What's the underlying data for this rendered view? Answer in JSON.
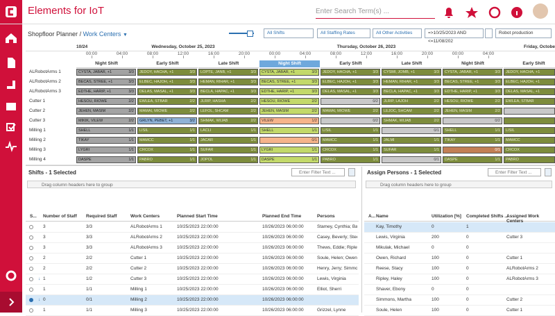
{
  "header": {
    "title": "Elements for IoT",
    "search_placeholder": "Enter Search Term(s) ..."
  },
  "breadcrumb": {
    "root": "Shopfloor Planner",
    "current": "Work Centers"
  },
  "filters": {
    "shifts": "All Shifts",
    "staffing": "All Staffing Rates",
    "activities": "All Other Activities",
    "date": "=>10/25/2023 AND <=11/08/202",
    "project": "Robot production"
  },
  "gantt": {
    "start_label": "10/24",
    "days": [
      "Wednesday, October 25, 2023",
      "Thursday, October 26, 2023",
      "Friday, October"
    ],
    "time_labels": [
      "00:00",
      "04:00",
      "08:00",
      "12:00",
      "16:00",
      "20:00",
      "00:00",
      "04:00",
      "08:00",
      "12:00",
      "16:00",
      "20:00",
      "00:00",
      "04:00"
    ],
    "shifts": [
      "Night Shift",
      "Early Shift",
      "Late Shift",
      "Night Shift",
      "Early Shift",
      "Late Shift",
      "Night Shift",
      "Early Shift"
    ],
    "resources": [
      {
        "name": "ALRobotArms 1",
        "cells": [
          {
            "t": "CYSTA, JABAR, +1",
            "c": "3/3",
            "s": "past"
          },
          {
            "t": "JEDOY, HACHA, +1",
            "c": "3/3",
            "s": "ok"
          },
          {
            "t": "LOPTE, JANB, +1",
            "c": "3/3",
            "s": "ok"
          },
          {
            "t": "CYSTA, JABAR, +1",
            "c": "3/3",
            "s": "current"
          },
          {
            "t": "JEDOY, HACHA, +1",
            "c": "3/3",
            "s": "ok"
          },
          {
            "t": "CYSMI, JOMB, +1",
            "c": "3/3",
            "s": "ok"
          },
          {
            "t": "CYSTA, JABAR, +1",
            "c": "3/3",
            "s": "ok"
          },
          {
            "t": "JEDOY, HACHA, +1",
            "s": "ok"
          }
        ]
      },
      {
        "name": "ALRobotArms 2",
        "cells": [
          {
            "t": "BECAS, STREE, +1",
            "c": "3/3",
            "s": "past"
          },
          {
            "t": "ELBEC, HAJOH, +1",
            "c": "3/3",
            "s": "ok"
          },
          {
            "t": "HEMAN, RIHAR, +1",
            "c": "3/3",
            "s": "ok"
          },
          {
            "t": "BECAS, STREE, +1",
            "c": "3/3",
            "s": "current"
          },
          {
            "t": "ELBEC, HAJOH, +1",
            "c": "3/3",
            "s": "ok"
          },
          {
            "t": "HEMAN, RIHAR, +1",
            "c": "3/3",
            "s": "ok"
          },
          {
            "t": "BECAS, STREE, +1",
            "c": "3/3",
            "s": "ok"
          },
          {
            "t": "ELBEC, HAJOH, +1",
            "s": "ok"
          }
        ]
      },
      {
        "name": "ALRobotArms 3",
        "cells": [
          {
            "t": "EDTHE, HARIP, +1",
            "c": "3/3",
            "s": "past"
          },
          {
            "t": "DELAS, MASAL, +1",
            "c": "3/3",
            "s": "ok"
          },
          {
            "t": "BECLA, HAPAC, +1",
            "c": "3/3",
            "s": "ok"
          },
          {
            "t": "EDTHE, HARIP, +1",
            "c": "3/3",
            "s": "current"
          },
          {
            "t": "DELAS, MASAL, +1",
            "c": "3/3",
            "s": "ok"
          },
          {
            "t": "BECLA, HAPAC, +1",
            "c": "3/3",
            "s": "ok"
          },
          {
            "t": "EDTHE, HARIP, +1",
            "c": "3/3",
            "s": "ok"
          },
          {
            "t": "DELAS, MASAL, +1",
            "s": "ok"
          }
        ]
      },
      {
        "name": "Cutter 1",
        "cells": [
          {
            "t": "HESOU, RIOWE",
            "c": "2/2",
            "s": "past"
          },
          {
            "t": "EWLEA, STBAR",
            "c": "2/2",
            "s": "ok"
          },
          {
            "t": "JLRIP, HASHA",
            "c": "2/2",
            "s": "ok"
          },
          {
            "t": "HESOU, RIOWE",
            "c": "2/2",
            "s": "current"
          },
          {
            "t": null,
            "c": "0/2",
            "s": "empty"
          },
          {
            "t": "JLRIP, LAJOH",
            "c": "2/2",
            "s": "ok"
          },
          {
            "t": "HESOU, RIOWE",
            "c": "2/2",
            "s": "ok"
          },
          {
            "t": "EWLEA, STBAR",
            "s": "ok"
          }
        ]
      },
      {
        "name": "Cutter 2",
        "cells": [
          {
            "t": "JEHEN, MASIM",
            "c": "2/2",
            "s": "past"
          },
          {
            "t": "MAMAI, MIOWE",
            "c": "2/2",
            "s": "ok"
          },
          {
            "t": "LEFOL, SHCAM",
            "c": "2/2",
            "s": "ok"
          },
          {
            "t": "JEHEN, MASIM",
            "c": "2/2",
            "s": "current"
          },
          {
            "t": "MAMAI, MIOWE",
            "c": "2/2",
            "s": "ok"
          },
          {
            "t": "LEJOC, SHCAM",
            "c": "2/2",
            "s": "ok"
          },
          {
            "t": "JEHEN, MASIM",
            "c": "2/2",
            "s": "ok"
          },
          {
            "t": null,
            "s": "empty"
          }
        ]
      },
      {
        "name": "Cutter 3",
        "cells": [
          {
            "t": "MIKIK, VILEW",
            "c": "2/2",
            "s": "past"
          },
          {
            "t": "GRLYN, PEBET, +1",
            "c": "3/2",
            "s": "over"
          },
          {
            "t": "SHMAK, WIJAB",
            "c": "2/2",
            "s": "ok"
          },
          {
            "t": "VILEW",
            "c": "1/2",
            "s": "under"
          },
          {
            "t": null,
            "c": "0/2",
            "s": "empty"
          },
          {
            "t": "SHMAK, WIJAB",
            "c": "2/2",
            "s": "ok"
          },
          {
            "t": null,
            "c": "0/2",
            "s": "empty"
          },
          {
            "t": null,
            "s": "ok"
          }
        ]
      },
      {
        "name": "Milling 1",
        "cells": [
          {
            "t": "SHELL",
            "c": "1/1",
            "s": "past"
          },
          {
            "t": "LISIL",
            "c": "1/1",
            "s": "ok"
          },
          {
            "t": "LACLI",
            "c": "1/1",
            "s": "ok"
          },
          {
            "t": "SHELL",
            "c": "1/1",
            "s": "current"
          },
          {
            "t": "LISIL",
            "c": "1/1",
            "s": "ok"
          },
          {
            "t": null,
            "c": "0/1",
            "s": "empty"
          },
          {
            "t": "SHELL",
            "c": "1/1",
            "s": "ok"
          },
          {
            "t": "LISIL",
            "s": "ok"
          }
        ]
      },
      {
        "name": "Milling 2",
        "cells": [
          {
            "t": "TIKAY",
            "c": "1/1",
            "s": "past"
          },
          {
            "t": "MAMCC",
            "c": "1/1",
            "s": "ok"
          },
          {
            "t": "JACAR",
            "c": "1/1",
            "s": "ok"
          },
          {
            "t": null,
            "c": "0/1",
            "s": "under"
          },
          {
            "t": "MAMCC",
            "c": "1/1",
            "s": "ok"
          },
          {
            "t": "JALMI",
            "c": "1/1",
            "s": "ok"
          },
          {
            "t": "TIKAY",
            "c": "1/1",
            "s": "ok"
          },
          {
            "t": "MAMCC",
            "s": "ok"
          }
        ]
      },
      {
        "name": "Milling 3",
        "cells": [
          {
            "t": "LYGRI",
            "c": "1/1",
            "s": "past"
          },
          {
            "t": "CRCOX",
            "c": "1/1",
            "s": "ok"
          },
          {
            "t": "SUFAR",
            "c": "1/1",
            "s": "ok"
          },
          {
            "t": "LYGRI",
            "c": "1/1",
            "s": "current"
          },
          {
            "t": "CRCOX",
            "c": "1/1",
            "s": "ok"
          },
          {
            "t": "SUFAR",
            "c": "1/1",
            "s": "ok"
          },
          {
            "t": null,
            "c": "0/1",
            "s": "under-dark"
          },
          {
            "t": "CRCOX",
            "s": "ok"
          }
        ]
      },
      {
        "name": "Milling 4",
        "cells": [
          {
            "t": "DASPE",
            "c": "1/1",
            "s": "past"
          },
          {
            "t": "PABRO",
            "c": "1/1",
            "s": "ok"
          },
          {
            "t": "JOPOL",
            "c": "1/1",
            "s": "ok"
          },
          {
            "t": "DASPE",
            "c": "1/1",
            "s": "current"
          },
          {
            "t": "PABRO",
            "c": "1/1",
            "s": "ok"
          },
          {
            "t": null,
            "c": "0/1",
            "s": "empty"
          },
          {
            "t": "DASPE",
            "c": "1/1",
            "s": "ok"
          },
          {
            "t": "PABRO",
            "s": "ok"
          }
        ]
      }
    ]
  },
  "shifts_table": {
    "title": "Shifts - 1 Selected",
    "filter_placeholder": "Enter Filter Text ...",
    "group_hint": "Drag column headers here to group",
    "columns": [
      "S...",
      "Number of Staff",
      "Required Staff",
      "Work Centers",
      "Planned Start Time",
      "Planned End Time",
      "Persons"
    ],
    "rows": [
      {
        "staff": "3",
        "required": "3/3",
        "wc": "ALRobotArms 1",
        "start": "10/25/2023 22:00:00",
        "end": "10/26/2023 06:00:00",
        "persons": "Stamey, Cynthia; Barr,",
        "under": false,
        "selected": false
      },
      {
        "staff": "3",
        "required": "3/3",
        "wc": "ALRobotArms 2",
        "start": "10/25/2023 22:00:00",
        "end": "10/26/2023 06:00:00",
        "persons": "Casey, Beverly; Steen,",
        "under": false,
        "selected": false
      },
      {
        "staff": "3",
        "required": "3/3",
        "wc": "ALRobotArms 3",
        "start": "10/25/2023 22:00:00",
        "end": "10/26/2023 06:00:00",
        "persons": "Thews, Eddie; Ripley, H",
        "under": false,
        "selected": false
      },
      {
        "staff": "2",
        "required": "2/2",
        "wc": "Cutter 1",
        "start": "10/25/2023 22:00:00",
        "end": "10/26/2023 06:00:00",
        "persons": "Soule, Helen; Owen, Ri",
        "under": false,
        "selected": false
      },
      {
        "staff": "2",
        "required": "2/2",
        "wc": "Cutter 2",
        "start": "10/25/2023 22:00:00",
        "end": "10/26/2023 06:00:00",
        "persons": "Henry, Jerry; Simmons",
        "under": false,
        "selected": false
      },
      {
        "staff": "1",
        "required": "1/2",
        "wc": "Cutter 3",
        "start": "10/25/2023 22:00:00",
        "end": "10/26/2023 06:00:00",
        "persons": "Lewis, Virginia",
        "under": true,
        "selected": false
      },
      {
        "staff": "1",
        "required": "1/1",
        "wc": "Milling 1",
        "start": "10/25/2023 22:00:00",
        "end": "10/26/2023 06:00:00",
        "persons": "Elliot, Sherri",
        "under": false,
        "selected": false
      },
      {
        "staff": "0",
        "required": "0/1",
        "wc": "Milling 2",
        "start": "10/25/2023 22:00:00",
        "end": "10/26/2023 06:00:00",
        "persons": null,
        "under": true,
        "selected": true
      },
      {
        "staff": "1",
        "required": "1/1",
        "wc": "Milling 3",
        "start": "10/25/2023 22:00:00",
        "end": "10/26/2023 06:00:00",
        "persons": "Grizzel, Lynne",
        "under": false,
        "selected": false
      }
    ]
  },
  "persons_table": {
    "title": "Assign Persons - 1 Selected",
    "filter_placeholder": "Enter Filter Text ...",
    "group_hint": "Drag column headers here to group",
    "columns": [
      "A...",
      "Name",
      "Utilization [%]",
      "Completed Shifts ...",
      "Assigned Work Centers"
    ],
    "rows": [
      {
        "name": "Kay, Timothy",
        "util": 0,
        "done": 1,
        "wc": null,
        "selected": true
      },
      {
        "name": "Lewis, Virginia",
        "util": 200,
        "done": 0,
        "wc": "Cutter 3",
        "selected": false
      },
      {
        "name": "Mikulak, Michael",
        "util": 0,
        "done": 0,
        "wc": null,
        "selected": false
      },
      {
        "name": "Owen, Richard",
        "util": 100,
        "done": 0,
        "wc": "Cutter 1",
        "selected": false
      },
      {
        "name": "Reese, Stacy",
        "util": 100,
        "done": 0,
        "wc": "ALRobotArms 2",
        "selected": false
      },
      {
        "name": "Ripley, Haley",
        "util": 100,
        "done": 0,
        "wc": "ALRobotArms 3",
        "selected": false
      },
      {
        "name": "Shaver, Ebony",
        "util": 0,
        "done": 0,
        "wc": null,
        "selected": false
      },
      {
        "name": "Simmons, Martha",
        "util": 100,
        "done": 0,
        "wc": "Cutter 2",
        "selected": false
      },
      {
        "name": "Soule, Helen",
        "util": 100,
        "done": 0,
        "wc": "Cutter 1",
        "selected": false
      }
    ]
  }
}
